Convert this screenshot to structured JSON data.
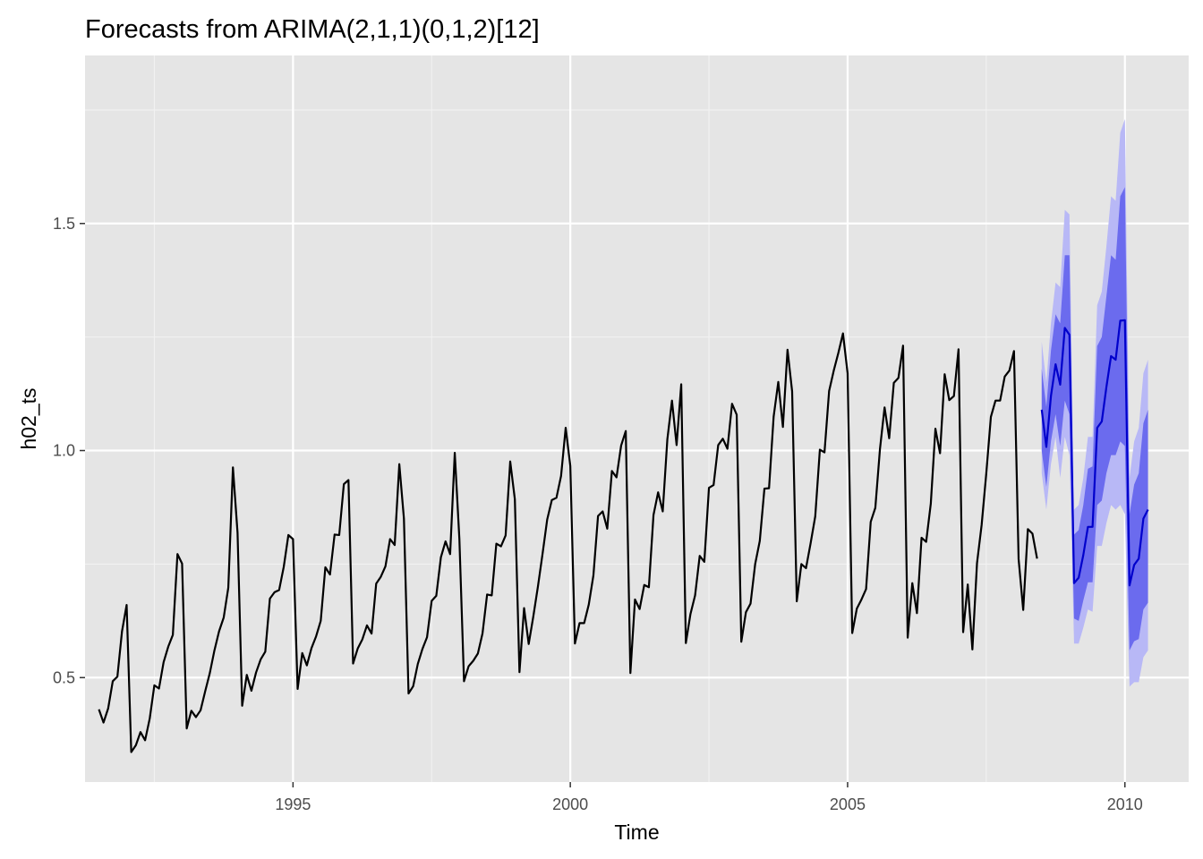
{
  "chart_data": {
    "type": "line",
    "title": "Forecasts from ARIMA(2,1,1)(0,1,2)[12]",
    "xlabel": "Time",
    "ylabel": "h02_ts",
    "xlim": [
      1991.25,
      2011.15
    ],
    "ylim": [
      0.27,
      1.87
    ],
    "x_ticks": [
      1995,
      2000,
      2005,
      2010
    ],
    "x_tick_labels": [
      "1995",
      "2000",
      "2005",
      "2010"
    ],
    "y_ticks": [
      0.5,
      1.0,
      1.5
    ],
    "y_tick_labels": [
      "0.5",
      "1.0",
      "1.5"
    ],
    "grid": true,
    "background": "#e5e5e5",
    "colors": {
      "history": "#000000",
      "forecast": "#0000cc",
      "band80": "#6b6bee",
      "band95": "#b8b8f6"
    },
    "series": [
      {
        "start": 1991.5,
        "step": 0.0833333,
        "values": [
          0.43,
          0.401,
          0.432,
          0.492,
          0.502,
          0.602,
          0.66,
          0.336,
          0.351,
          0.38,
          0.362,
          0.41,
          0.483,
          0.476,
          0.534,
          0.568,
          0.594,
          0.772,
          0.751,
          0.388,
          0.427,
          0.413,
          0.428,
          0.47,
          0.51,
          0.56,
          0.602,
          0.632,
          0.698,
          0.963,
          0.819,
          0.438,
          0.506,
          0.471,
          0.511,
          0.54,
          0.557,
          0.674,
          0.688,
          0.693,
          0.744,
          0.814,
          0.805,
          0.475,
          0.554,
          0.527,
          0.565,
          0.591,
          0.625,
          0.743,
          0.727,
          0.815,
          0.814,
          0.926,
          0.935,
          0.531,
          0.564,
          0.584,
          0.615,
          0.597,
          0.707,
          0.722,
          0.745,
          0.805,
          0.792,
          0.97,
          0.85,
          0.465,
          0.481,
          0.53,
          0.563,
          0.589,
          0.669,
          0.68,
          0.765,
          0.8,
          0.772,
          0.995,
          0.805,
          0.492,
          0.525,
          0.537,
          0.553,
          0.597,
          0.683,
          0.681,
          0.795,
          0.789,
          0.813,
          0.976,
          0.893,
          0.512,
          0.653,
          0.574,
          0.635,
          0.701,
          0.773,
          0.848,
          0.891,
          0.896,
          0.944,
          1.05,
          0.966,
          0.575,
          0.62,
          0.62,
          0.661,
          0.725,
          0.856,
          0.866,
          0.828,
          0.955,
          0.941,
          1.011,
          1.043,
          0.51,
          0.672,
          0.651,
          0.704,
          0.699,
          0.858,
          0.908,
          0.866,
          1.025,
          1.11,
          1.012,
          1.146,
          0.576,
          0.64,
          0.681,
          0.768,
          0.755,
          0.918,
          0.924,
          1.012,
          1.026,
          1.004,
          1.103,
          1.079,
          0.579,
          0.644,
          0.663,
          0.75,
          0.801,
          0.916,
          0.917,
          1.075,
          1.151,
          1.052,
          1.222,
          1.13,
          0.668,
          0.75,
          0.741,
          0.796,
          0.855,
          1.002,
          0.996,
          1.131,
          1.176,
          1.215,
          1.258,
          1.17,
          0.598,
          0.652,
          0.672,
          0.695,
          0.843,
          0.874,
          1.003,
          1.095,
          1.027,
          1.149,
          1.16,
          1.231,
          0.588,
          0.708,
          0.642,
          0.808,
          0.799,
          0.883,
          1.048,
          0.994,
          1.168,
          1.111,
          1.12,
          1.223,
          0.6,
          0.705,
          0.562,
          0.752,
          0.836,
          0.949,
          1.074,
          1.11,
          1.11,
          1.163,
          1.176,
          1.219,
          0.761,
          0.649,
          0.827,
          0.817,
          0.762
        ]
      },
      {
        "start": 2008.5,
        "step": 0.0833333,
        "values": [
          1.09,
          1.008,
          1.12,
          1.19,
          1.145,
          1.27,
          1.255,
          0.708,
          0.72,
          0.77,
          0.832,
          0.832,
          1.05,
          1.064,
          1.14,
          1.208,
          1.2,
          1.286,
          1.287,
          0.703,
          0.748,
          0.762,
          0.85,
          0.87
        ],
        "lo80": [
          1.0,
          0.92,
          1.02,
          1.08,
          1.01,
          1.11,
          1.08,
          0.63,
          0.625,
          0.67,
          0.71,
          0.71,
          0.88,
          0.89,
          0.95,
          0.99,
          0.99,
          1.02,
          1.01,
          0.56,
          0.58,
          0.585,
          0.65,
          0.665
        ],
        "hi80": [
          1.18,
          1.096,
          1.22,
          1.3,
          1.28,
          1.43,
          1.43,
          0.815,
          0.825,
          0.88,
          0.96,
          0.965,
          1.23,
          1.25,
          1.34,
          1.43,
          1.42,
          1.56,
          1.58,
          0.86,
          0.925,
          0.95,
          1.06,
          1.09
        ],
        "lo95": [
          0.95,
          0.87,
          0.97,
          1.03,
          0.94,
          1.03,
          0.99,
          0.575,
          0.575,
          0.61,
          0.65,
          0.645,
          0.79,
          0.79,
          0.84,
          0.88,
          0.87,
          0.88,
          0.86,
          0.48,
          0.49,
          0.49,
          0.545,
          0.56
        ],
        "hi95": [
          1.24,
          1.15,
          1.28,
          1.37,
          1.36,
          1.53,
          1.52,
          0.87,
          0.88,
          0.94,
          1.03,
          1.03,
          1.32,
          1.35,
          1.45,
          1.56,
          1.55,
          1.7,
          1.73,
          0.94,
          1.02,
          1.05,
          1.17,
          1.2
        ]
      }
    ]
  }
}
